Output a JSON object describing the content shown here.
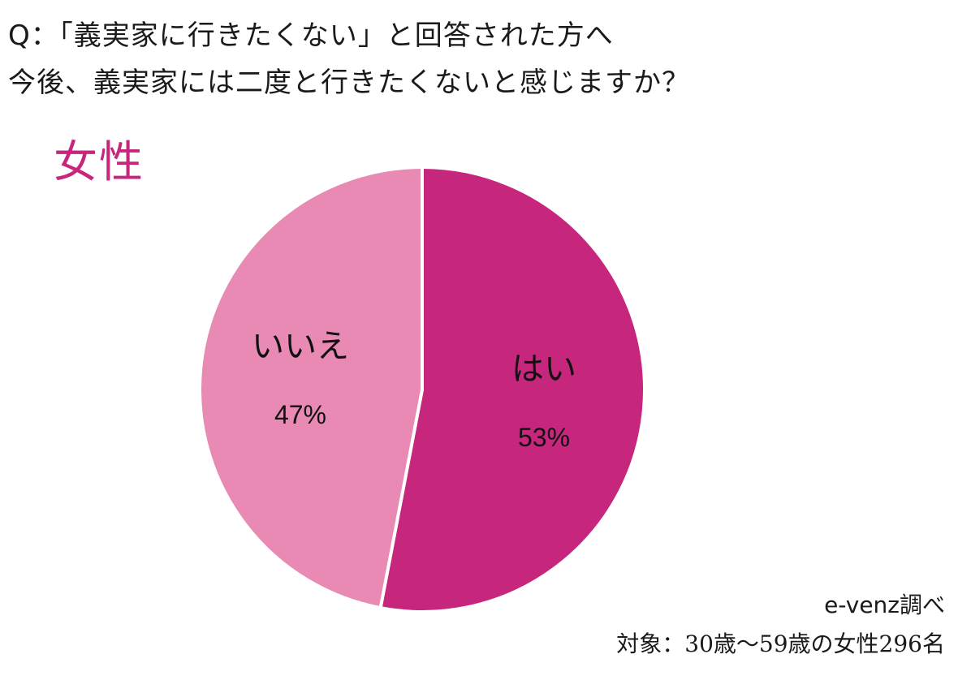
{
  "question": {
    "line1": "Q：「義実家に行きたくない」と回答された方へ",
    "line2": "今後、義実家には二度と行きたくないと感じますか？"
  },
  "chart_data": {
    "type": "pie",
    "title": "女性",
    "slices": [
      {
        "label": "はい",
        "value": 53,
        "value_label": "53%",
        "color": "#c6267c"
      },
      {
        "label": "いいえ",
        "value": 47,
        "value_label": "47%",
        "color": "#e98ab5"
      }
    ],
    "start_angle_deg": 0,
    "direction": "clockwise"
  },
  "footer": {
    "source": "e-venz調べ",
    "target": "対象：30歳～59歳の女性296名"
  }
}
